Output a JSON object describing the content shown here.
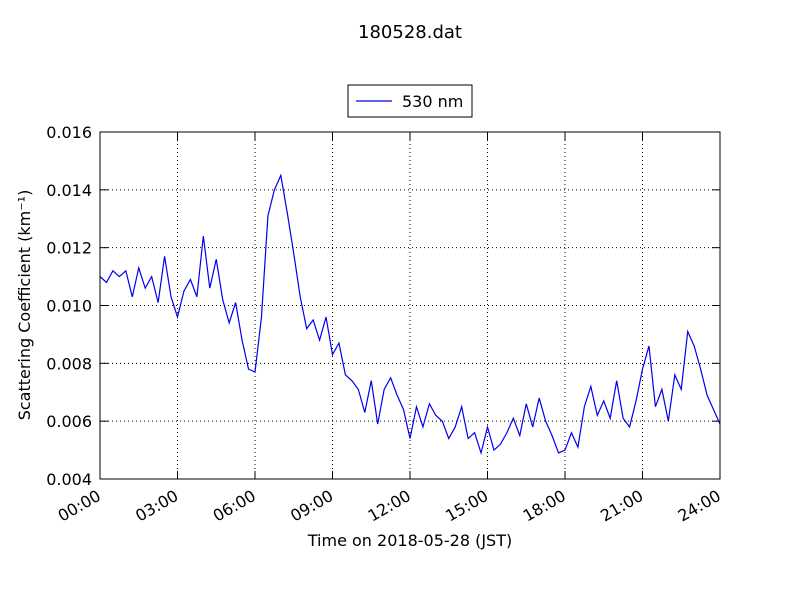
{
  "chart_data": {
    "type": "line",
    "title": "180528.dat",
    "x_label": "Time on 2018-05-28 (JST)",
    "y_label": "Scattering Coefficient (km⁻¹)",
    "x": [
      0,
      0.25,
      0.5,
      0.75,
      1,
      1.25,
      1.5,
      1.75,
      2,
      2.25,
      2.5,
      2.75,
      3,
      3.25,
      3.5,
      3.75,
      4,
      4.25,
      4.5,
      4.75,
      5,
      5.25,
      5.5,
      5.75,
      6,
      6.25,
      6.5,
      6.75,
      7,
      7.25,
      7.5,
      7.75,
      8,
      8.25,
      8.5,
      8.75,
      9,
      9.25,
      9.5,
      9.75,
      10,
      10.25,
      10.5,
      10.75,
      11,
      11.25,
      11.5,
      11.75,
      12,
      12.25,
      12.5,
      12.75,
      13,
      13.25,
      13.5,
      13.75,
      14,
      14.25,
      14.5,
      14.75,
      15,
      15.25,
      15.5,
      15.75,
      16,
      16.25,
      16.5,
      16.75,
      17,
      17.25,
      17.5,
      17.75,
      18,
      18.25,
      18.5,
      18.75,
      19,
      19.25,
      19.5,
      19.75,
      20,
      20.25,
      20.5,
      20.75,
      21,
      21.25,
      21.5,
      21.75,
      22,
      22.25,
      22.5,
      22.75,
      23,
      23.25,
      23.5,
      23.75,
      24
    ],
    "series": [
      {
        "name": "530 nm",
        "color": "#0000ee",
        "values": [
          0.011,
          0.0108,
          0.0112,
          0.011,
          0.0112,
          0.0103,
          0.0113,
          0.0106,
          0.011,
          0.0101,
          0.0117,
          0.0103,
          0.0096,
          0.0105,
          0.0109,
          0.0103,
          0.0124,
          0.0106,
          0.0116,
          0.0102,
          0.0094,
          0.0101,
          0.0088,
          0.0078,
          0.0077,
          0.0096,
          0.0131,
          0.014,
          0.0145,
          0.0132,
          0.0118,
          0.0103,
          0.0092,
          0.0095,
          0.0088,
          0.0096,
          0.0083,
          0.0087,
          0.0076,
          0.0074,
          0.0071,
          0.0063,
          0.0074,
          0.0059,
          0.0071,
          0.0075,
          0.0069,
          0.0064,
          0.0054,
          0.0065,
          0.0058,
          0.0066,
          0.0062,
          0.006,
          0.0054,
          0.0058,
          0.0065,
          0.0054,
          0.0056,
          0.0049,
          0.0058,
          0.005,
          0.0052,
          0.0056,
          0.0061,
          0.0055,
          0.0066,
          0.0058,
          0.0068,
          0.006,
          0.0055,
          0.0049,
          0.005,
          0.0056,
          0.0051,
          0.0065,
          0.0072,
          0.0062,
          0.0067,
          0.0061,
          0.0074,
          0.0061,
          0.0058,
          0.0067,
          0.0078,
          0.0086,
          0.0065,
          0.0071,
          0.006,
          0.0076,
          0.0071,
          0.0091,
          0.0086,
          0.0078,
          0.0069,
          0.0064,
          0.0059
        ]
      }
    ],
    "xlim": [
      0,
      24
    ],
    "xticks": [
      {
        "value": 0,
        "label": "00:00"
      },
      {
        "value": 3,
        "label": "03:00"
      },
      {
        "value": 6,
        "label": "06:00"
      },
      {
        "value": 9,
        "label": "09:00"
      },
      {
        "value": 12,
        "label": "12:00"
      },
      {
        "value": 15,
        "label": "15:00"
      },
      {
        "value": 18,
        "label": "18:00"
      },
      {
        "value": 21,
        "label": "21:00"
      },
      {
        "value": 24,
        "label": "24:00"
      }
    ],
    "ylim": [
      0.004,
      0.016
    ],
    "yticks": [
      0.004,
      0.006,
      0.008,
      {
        "value": 0.01,
        "label": "0.010"
      },
      0.012,
      0.014,
      0.016
    ],
    "grid": true,
    "legend": "top"
  }
}
